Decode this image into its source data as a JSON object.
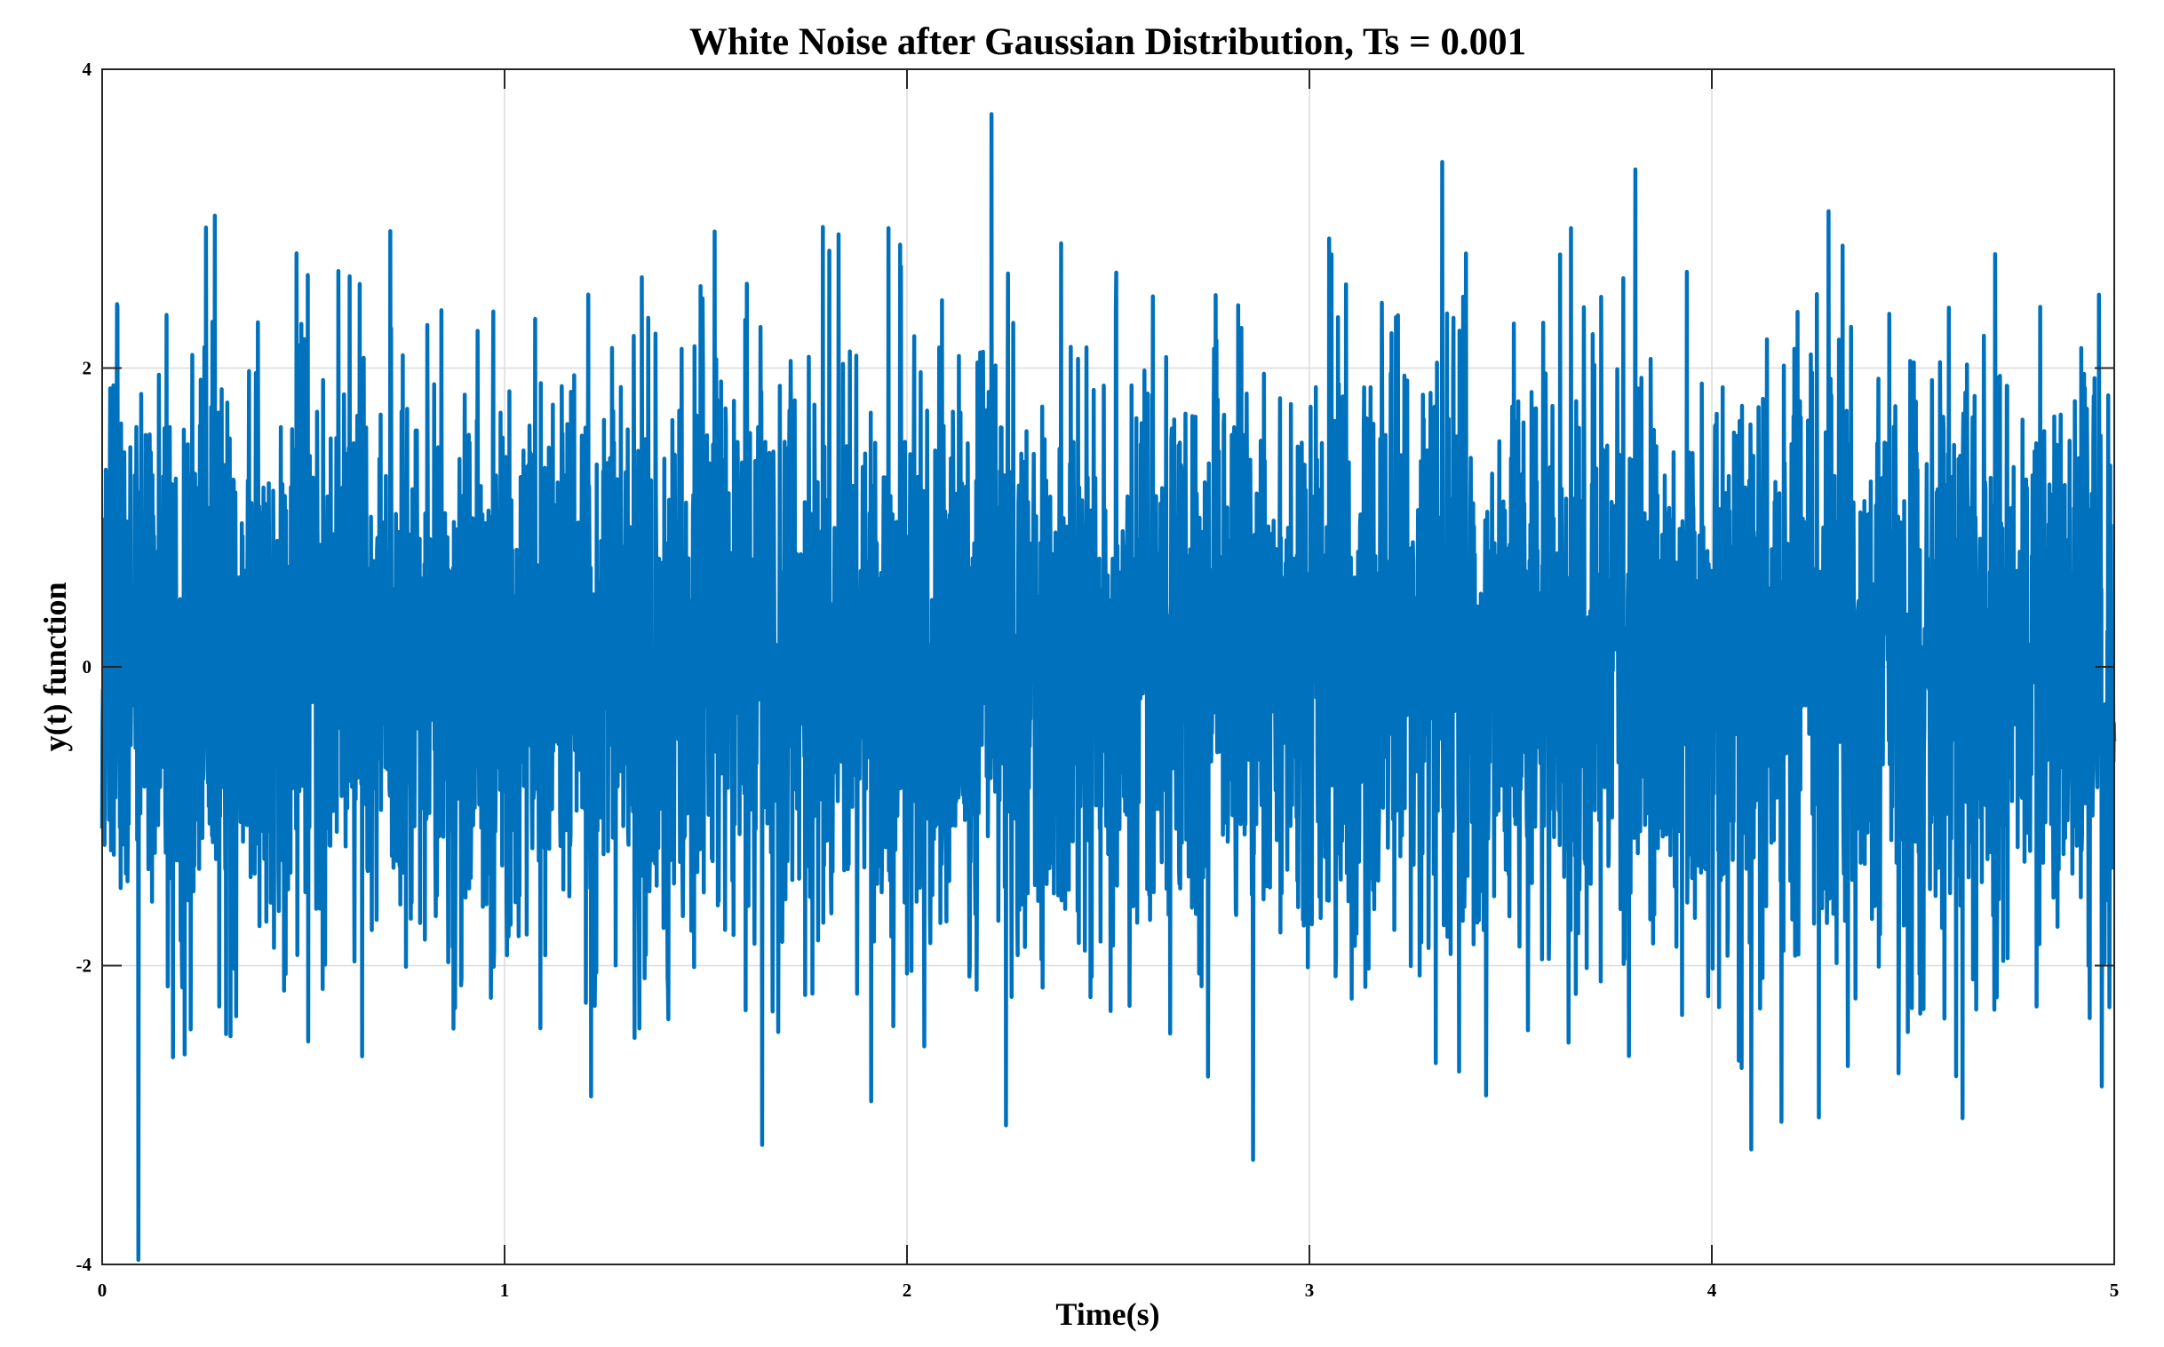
{
  "chart_data": {
    "type": "line",
    "title": "White Noise after Gaussian Distribution, Ts = 0.001",
    "xlabel": "Time(s)",
    "ylabel": "y(t) function",
    "xlim": [
      0,
      5
    ],
    "ylim": [
      -4,
      4
    ],
    "xticks": [
      0,
      1,
      2,
      3,
      4,
      5
    ],
    "xtick_labels": [
      "0",
      "1",
      "2",
      "3",
      "4",
      "5"
    ],
    "yticks": [
      -4,
      -2,
      0,
      2,
      4
    ],
    "ytick_labels": [
      "-4",
      "-2",
      "0",
      "2",
      "4"
    ],
    "grid": true,
    "legend": "none",
    "series": [
      {
        "color": "#0072BD",
        "sample_interval": 0.001,
        "distribution": "gaussian",
        "mean": 0,
        "std_dev": 1,
        "x_start": 0,
        "x_end": 5,
        "notable_points": [
          {
            "x": 0.09,
            "y": -3.97
          },
          {
            "x": 0.28,
            "y": 3.02
          },
          {
            "x": 2.21,
            "y": 3.7
          },
          {
            "x": 2.86,
            "y": -3.3
          },
          {
            "x": 3.33,
            "y": 3.38
          },
          {
            "x": 3.81,
            "y": 3.33
          },
          {
            "x": 4.29,
            "y": 3.05
          },
          {
            "x": 1.64,
            "y": -3.2
          }
        ]
      }
    ]
  }
}
